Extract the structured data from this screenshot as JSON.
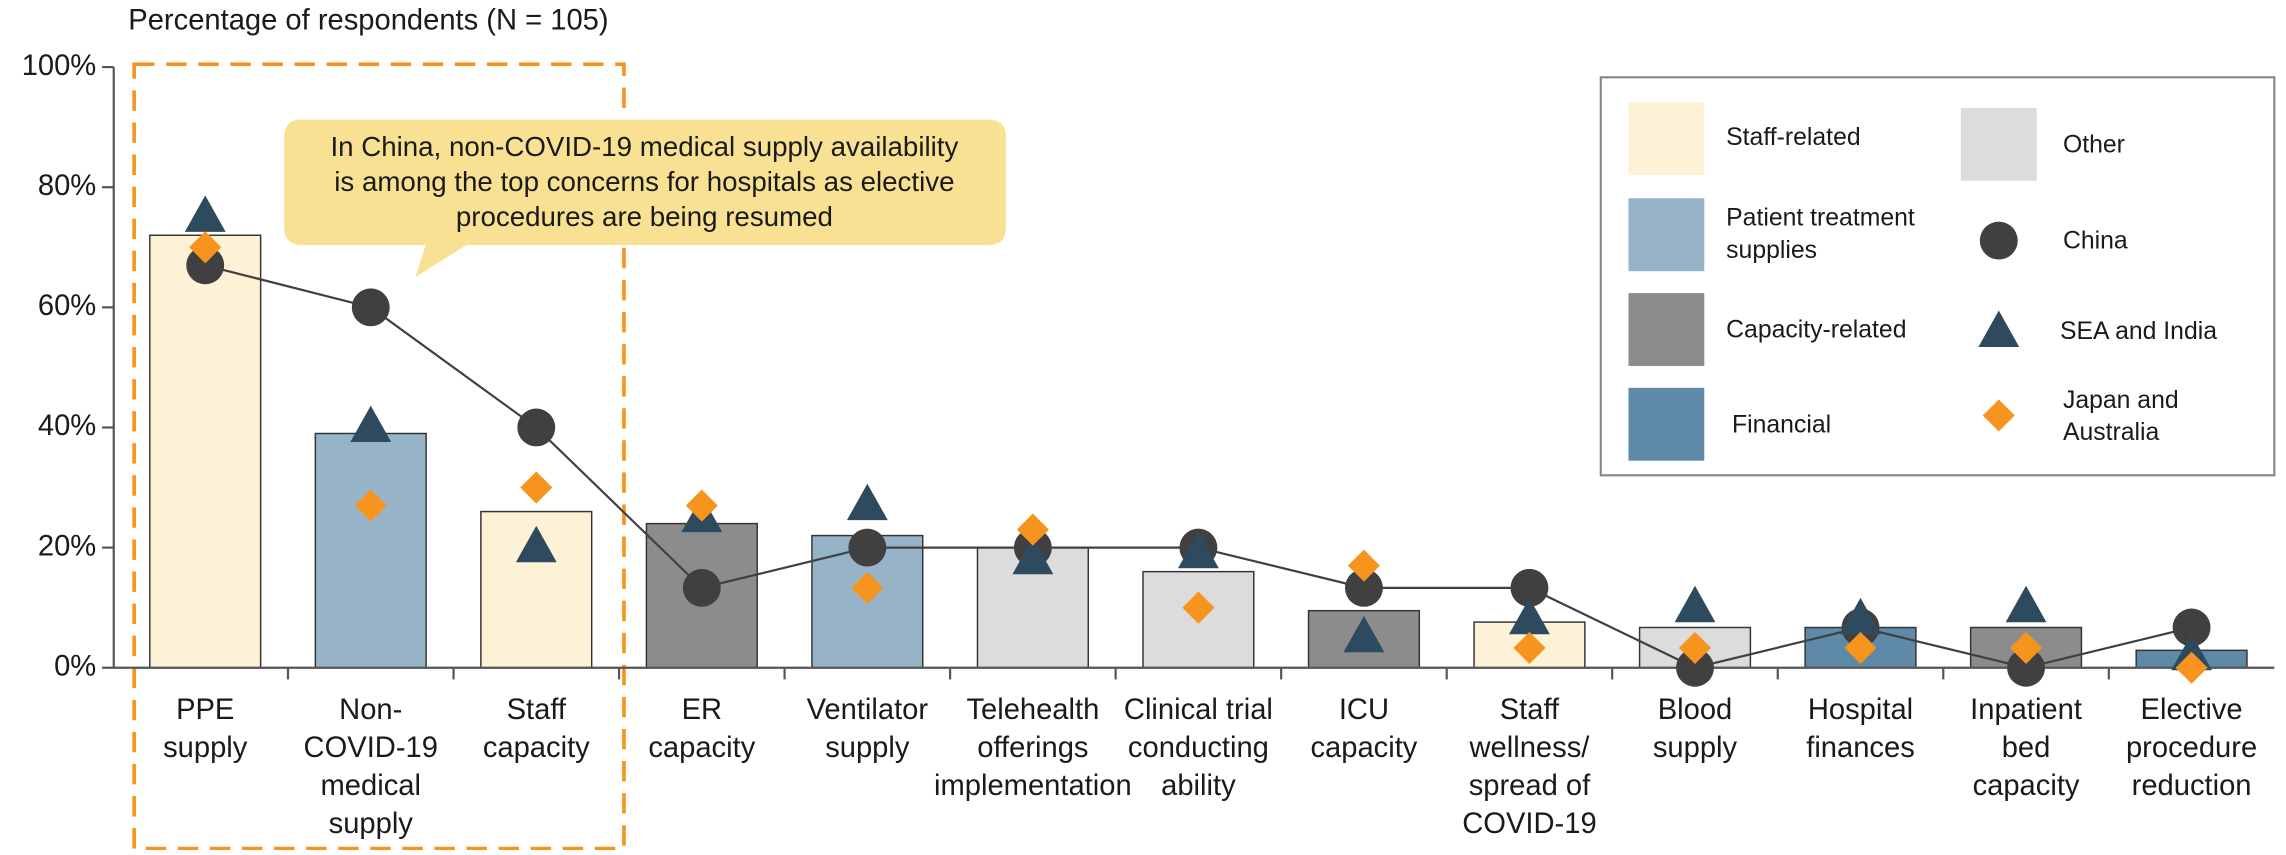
{
  "chart_data": {
    "type": "bar",
    "subtitle": "Percentage of respondents (N = 105)",
    "annotation": [
      "In China, non-COVID-19 medical supply availability",
      "is among the top concerns for hospitals as elective",
      "procedures are being resumed"
    ],
    "categories": [
      [
        "PPE",
        "supply"
      ],
      [
        "Non-",
        "COVID-19",
        "medical",
        "supply"
      ],
      [
        "Staff",
        "capacity"
      ],
      [
        "ER",
        "capacity"
      ],
      [
        "Ventilator",
        "supply"
      ],
      [
        "Telehealth",
        "offerings",
        "implementation"
      ],
      [
        "Clinical trial",
        "conducting",
        "ability"
      ],
      [
        "ICU",
        "capacity"
      ],
      [
        "Staff",
        "wellness/",
        "spread of",
        "COVID-19"
      ],
      [
        "Blood",
        "supply"
      ],
      [
        "Hospital",
        "finances"
      ],
      [
        "Inpatient",
        "bed",
        "capacity"
      ],
      [
        "Elective",
        "procedure",
        "reduction"
      ]
    ],
    "bar_groups": [
      {
        "name": "Staff-related",
        "color": "#fdf2d5"
      },
      {
        "name": "Patient treatment supplies",
        "color": "#97b3c8"
      },
      {
        "name": "Capacity-related",
        "color": "#8c8c8c"
      },
      {
        "name": "Financial",
        "color": "#5f89a8"
      },
      {
        "name": "Other",
        "color": "#dcdcdc"
      }
    ],
    "values": [
      72,
      39,
      26,
      24,
      22,
      20,
      16,
      9.5,
      7.6,
      6.7,
      6.7,
      6.7,
      2.9
    ],
    "colors": [
      "#fdf2d5",
      "#97b3c8",
      "#fdf2d5",
      "#8c8c8c",
      "#97b3c8",
      "#dcdcdc",
      "#dcdcdc",
      "#8c8c8c",
      "#fdf2d5",
      "#dcdcdc",
      "#5f89a8",
      "#8c8c8c",
      "#5f89a8"
    ],
    "series": [
      {
        "name": "China",
        "color": "#404040",
        "marker": "circle",
        "values": [
          67,
          60,
          40,
          13.3,
          20,
          20,
          20,
          13.3,
          13.3,
          0,
          6.7,
          0,
          6.7
        ]
      },
      {
        "name": "SEA and India",
        "color": "#2e4a5e",
        "marker": "triangle",
        "values": [
          75,
          40,
          20,
          25,
          27,
          18,
          19,
          5,
          8,
          10,
          8,
          10,
          2
        ]
      },
      {
        "name": "Japan and Australia",
        "color": "#f7941d",
        "marker": "diamond",
        "values": [
          70,
          27,
          30,
          27,
          13.3,
          23,
          10,
          17,
          3.3,
          3.3,
          3.3,
          3.3,
          0
        ]
      }
    ],
    "ylim": [
      0,
      100
    ],
    "yticks": [
      {
        "value": 0,
        "label": "0%"
      },
      {
        "value": 20,
        "label": "20%"
      },
      {
        "value": 40,
        "label": "40%"
      },
      {
        "value": 60,
        "label": "60%"
      },
      {
        "value": 80,
        "label": "80%"
      },
      {
        "value": 100,
        "label": "100%"
      }
    ]
  }
}
